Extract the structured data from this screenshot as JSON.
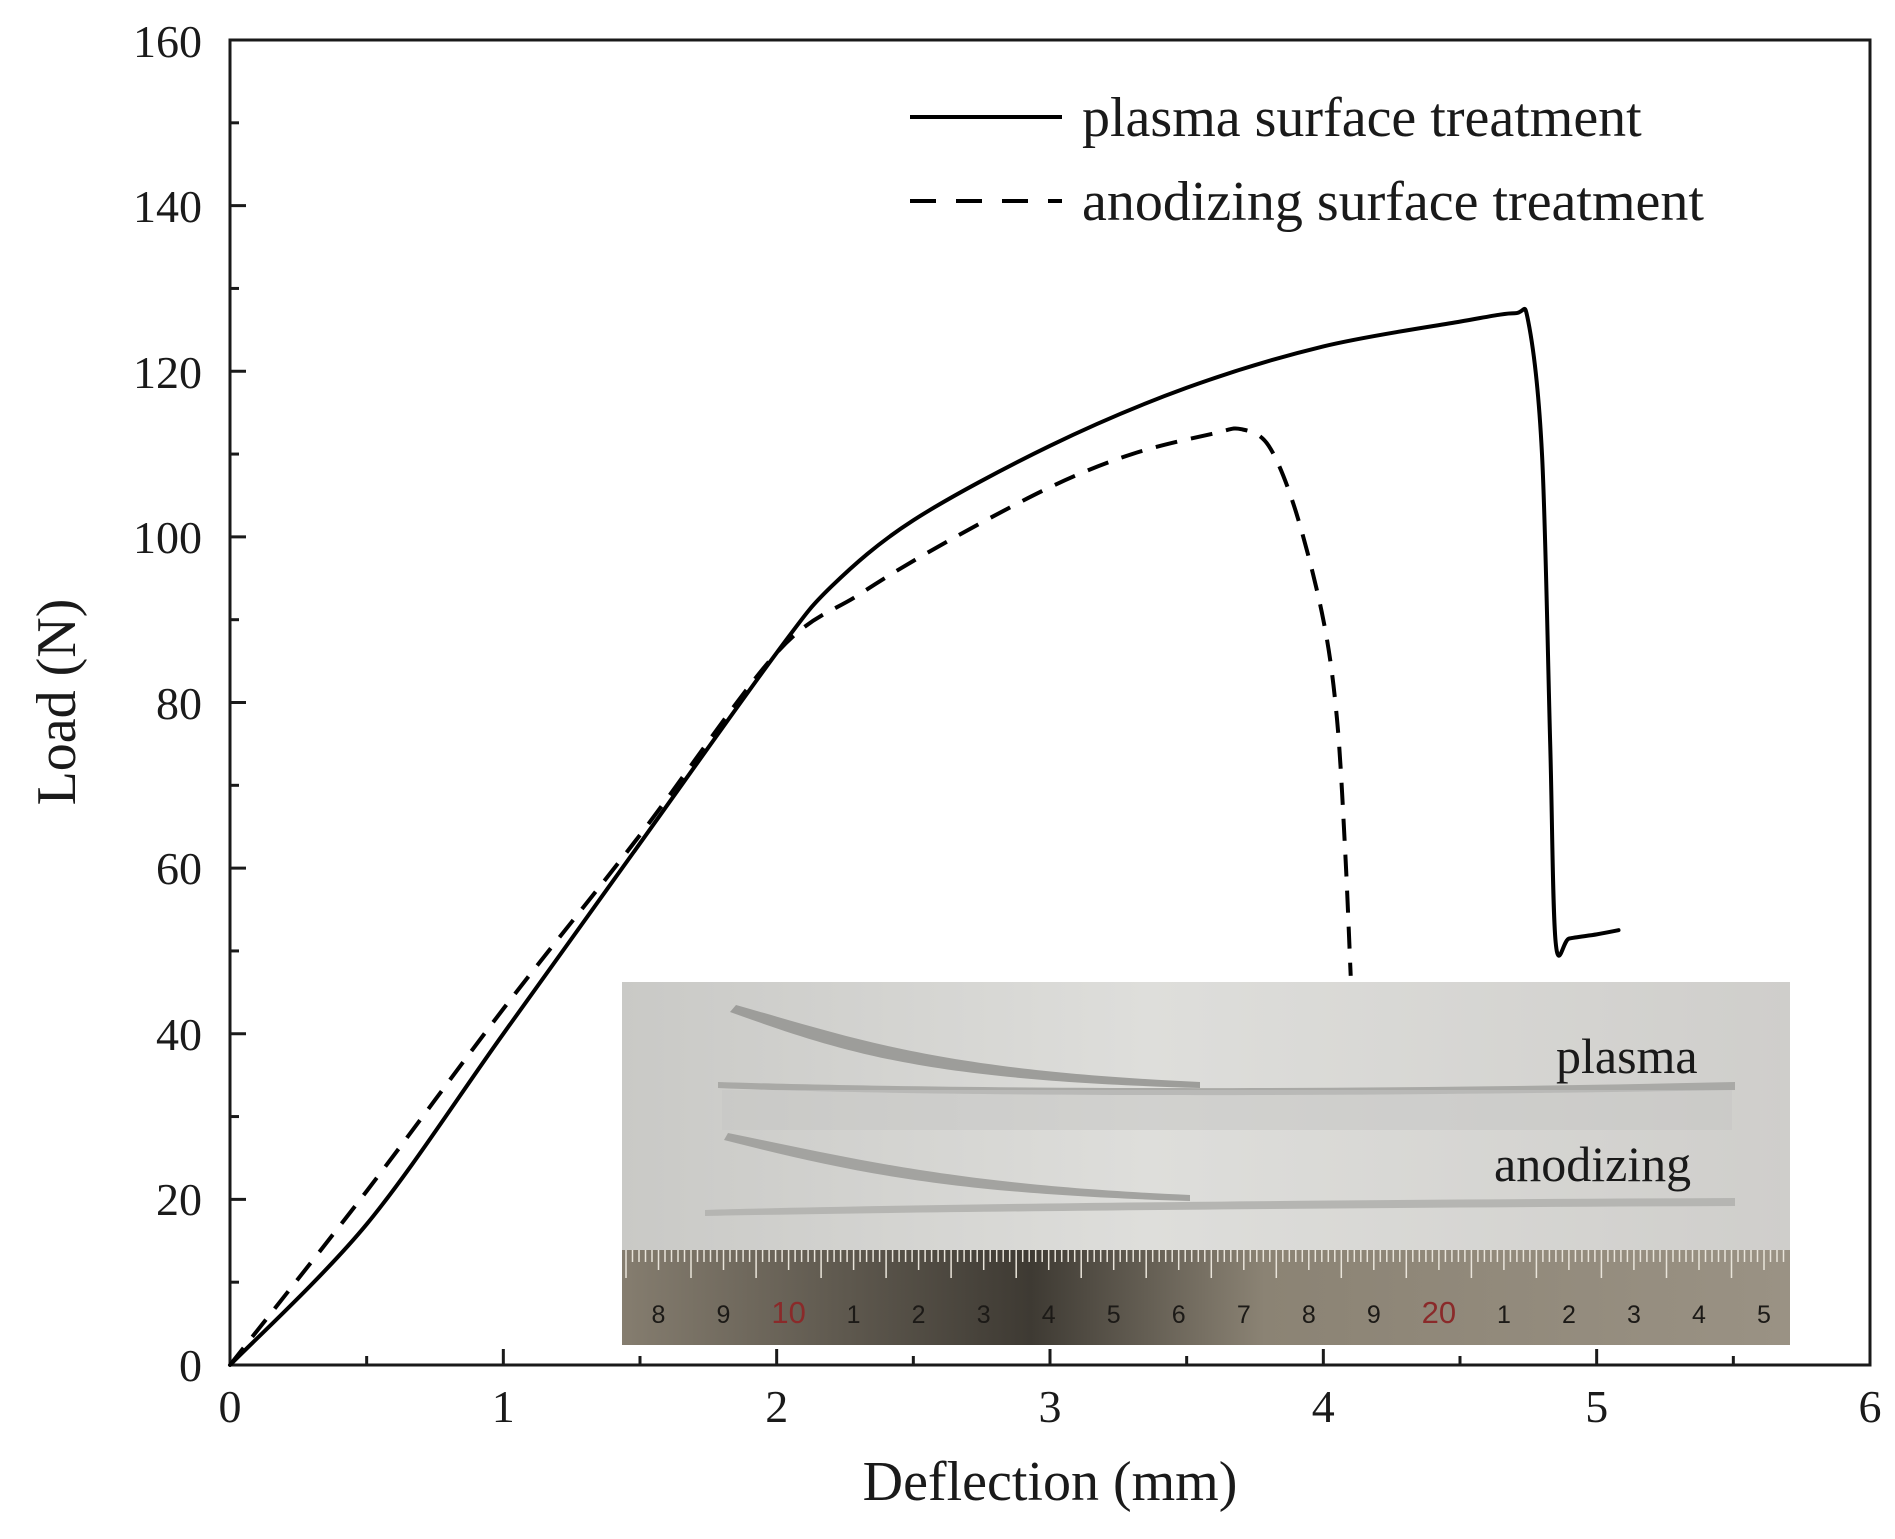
{
  "chart_data": {
    "type": "line",
    "xlabel": "Deflection (mm)",
    "ylabel": "Load (N)",
    "xlim": [
      0,
      6
    ],
    "ylim": [
      0,
      160
    ],
    "xticks": [
      "0",
      "1",
      "2",
      "3",
      "4",
      "5",
      "6"
    ],
    "yticks": [
      "0",
      "20",
      "40",
      "60",
      "80",
      "100",
      "120",
      "140",
      "160"
    ],
    "grid": false,
    "legend_position": "top-right",
    "series": [
      {
        "name": "plasma surface treatment",
        "line_style": "solid",
        "color": "#000000",
        "x": [
          0,
          0.5,
          1.0,
          1.5,
          2.0,
          2.2,
          2.5,
          3.0,
          3.5,
          4.0,
          4.5,
          4.7,
          4.75,
          4.8,
          4.83,
          4.85,
          4.9,
          5.0,
          5.08
        ],
        "y": [
          0,
          17,
          40,
          63,
          86,
          94,
          102,
          111,
          118,
          123,
          126,
          127,
          126,
          110,
          75,
          51,
          51.5,
          52,
          52.5
        ]
      },
      {
        "name": "anodizing surface treatment",
        "line_style": "dashed",
        "color": "#000000",
        "x": [
          0,
          0.5,
          1.0,
          1.5,
          2.0,
          2.3,
          2.6,
          3.0,
          3.3,
          3.6,
          3.7,
          3.8,
          3.9,
          4.0,
          4.05,
          4.08,
          4.1
        ],
        "y": [
          0,
          21,
          43,
          64,
          86,
          93,
          99,
          106,
          110,
          112.5,
          113,
          111,
          103,
          90,
          78,
          62,
          47
        ]
      }
    ]
  },
  "inset_photo": {
    "labels": {
      "top": "plasma",
      "bottom": "anodizing"
    },
    "ruler_numbers": [
      "8",
      "9",
      "10",
      "1",
      "2",
      "3",
      "4",
      "5",
      "6",
      "7",
      "8",
      "9",
      "20",
      "1",
      "2",
      "3",
      "4",
      "5"
    ]
  },
  "colors": {
    "axis": "#1a1a1a",
    "photo_bg": "#d6d6d4",
    "ruler": "#7c7466",
    "red_numbers": "#8a2a2a"
  }
}
